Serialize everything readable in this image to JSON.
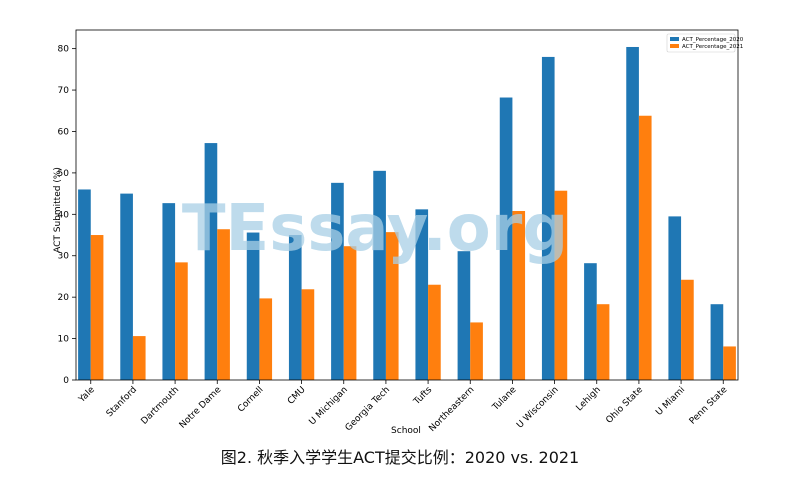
{
  "chart_data": {
    "type": "bar",
    "categories": [
      "Yale",
      "Stanford",
      "Dartmouth",
      "Notre Dame",
      "Cornell",
      "CMU",
      "U Michigan",
      "Georgia Tech",
      "Tufts",
      "Northeastern",
      "Tulane",
      "U Wisconsin",
      "Lehigh",
      "Ohio State",
      "U Miami",
      "Penn State"
    ],
    "series": [
      {
        "name": "ACT_Percentage_2020",
        "color": "#1f77b4",
        "values": [
          46,
          45,
          42.7,
          57.2,
          35.6,
          35,
          47.6,
          50.5,
          41.2,
          31.1,
          68.2,
          78,
          28.2,
          80.4,
          39.5,
          18.3
        ]
      },
      {
        "name": "ACT_Percentage_2021",
        "color": "#ff7f0e",
        "values": [
          35,
          10.6,
          28.4,
          36.4,
          19.7,
          21.9,
          32.3,
          35.7,
          23,
          13.9,
          40.8,
          45.7,
          18.3,
          63.8,
          24.2,
          8.1
        ]
      }
    ],
    "xlabel": "School",
    "ylabel": "ACT Submitted (%)",
    "ylim": [
      0,
      84.5
    ],
    "yticks": [
      0,
      10,
      20,
      30,
      40,
      50,
      60,
      70,
      80
    ],
    "legend_position": "top-right",
    "grid": false
  },
  "watermark": "TEssay.org",
  "caption": "图2. 秋季入学学生ACT提交比例：2020 vs. 2021"
}
